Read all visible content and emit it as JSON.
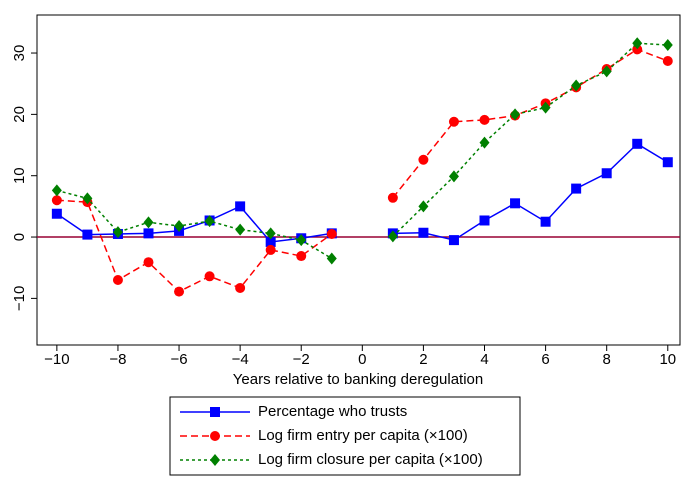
{
  "chart_data": {
    "type": "line",
    "xlabel": "Years relative to banking deregulation",
    "x": [
      -10,
      -9,
      -8,
      -7,
      -6,
      -5,
      -4,
      -3,
      -2,
      -1,
      0,
      1,
      2,
      3,
      4,
      5,
      6,
      7,
      8,
      9,
      10
    ],
    "series": [
      {
        "name": "Percentage who trusts",
        "color": "#0000ff",
        "marker": "square",
        "dash": "solid",
        "values": [
          3.8,
          0.4,
          0.5,
          0.6,
          1.0,
          2.7,
          5.0,
          -0.8,
          -0.2,
          0.6,
          null,
          0.6,
          0.7,
          -0.5,
          2.7,
          5.5,
          2.5,
          7.9,
          10.4,
          15.2,
          12.2
        ]
      },
      {
        "name": "Log firm entry per capita (×100)",
        "color": "#ff0000",
        "marker": "circle",
        "dash": "dashed",
        "values": [
          6.0,
          5.7,
          -7.0,
          -4.1,
          -8.9,
          -6.4,
          -8.3,
          -2.1,
          -3.1,
          0.5,
          null,
          6.4,
          12.6,
          18.8,
          19.1,
          19.8,
          21.8,
          24.4,
          27.4,
          30.6,
          28.7
        ]
      },
      {
        "name": "Log firm closure per capita (×100)",
        "color": "#008000",
        "marker": "diamond",
        "dash": "dotted",
        "values": [
          7.6,
          6.3,
          0.8,
          2.4,
          1.8,
          2.6,
          1.2,
          0.6,
          -0.5,
          -3.5,
          null,
          0.1,
          5.0,
          9.9,
          15.4,
          20.0,
          21.1,
          24.7,
          27.0,
          31.6,
          31.3
        ]
      }
    ],
    "xlim": [
      -10.65,
      10.4
    ],
    "ylim": [
      -17.6,
      36.2
    ],
    "xticks": [
      {
        "value": -10,
        "label": "−10"
      },
      {
        "value": -8,
        "label": "−8"
      },
      {
        "value": -6,
        "label": "−6"
      },
      {
        "value": -4,
        "label": "−4"
      },
      {
        "value": -2,
        "label": "−2"
      },
      0,
      2,
      4,
      6,
      8,
      10
    ],
    "yticks": [
      {
        "value": -10,
        "label": "−10"
      },
      0,
      10,
      20,
      30
    ],
    "hline": 0,
    "hline_color": "#990033",
    "legend": "bottom"
  }
}
